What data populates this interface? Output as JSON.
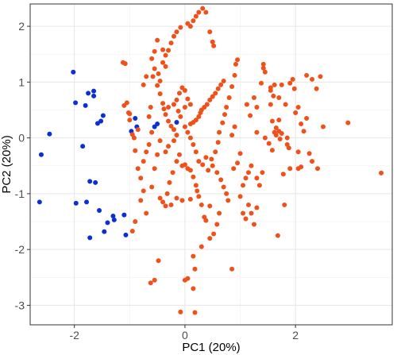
{
  "chart_data": {
    "type": "scatter",
    "title": "",
    "xlabel": "PC1 (20%)",
    "ylabel": "PC2 (20%)",
    "xlim": [
      -2.8,
      3.75
    ],
    "ylim": [
      -3.35,
      2.4
    ],
    "x_ticks": [
      -2,
      0,
      2
    ],
    "y_ticks": [
      -3,
      -2,
      -1,
      0,
      1,
      2
    ],
    "x_tick_labels": [
      "-2",
      "0",
      "2"
    ],
    "y_tick_labels": [
      "-3",
      "-2",
      "-1",
      "0",
      "1",
      "2"
    ],
    "grid": true,
    "legend": "none",
    "series": [
      {
        "color": "#0b2fd4",
        "points": [
          [
            -2.63,
            -1.15
          ],
          [
            -2.6,
            -0.3
          ],
          [
            -2.45,
            0.07
          ],
          [
            -2.02,
            1.18
          ],
          [
            -1.98,
            0.63
          ],
          [
            -1.97,
            -1.17
          ],
          [
            -1.85,
            -0.15
          ],
          [
            -1.8,
            0.58
          ],
          [
            -1.78,
            -1.15
          ],
          [
            -1.75,
            0.8
          ],
          [
            -1.72,
            -0.78
          ],
          [
            -1.65,
            0.84
          ],
          [
            -1.65,
            0.75
          ],
          [
            -1.62,
            -0.8
          ],
          [
            -1.58,
            0.26
          ],
          [
            -1.55,
            -1.3
          ],
          [
            -1.52,
            0.3
          ],
          [
            -1.46,
            -1.68
          ],
          [
            -1.48,
            0.4
          ],
          [
            -1.4,
            -1.52
          ],
          [
            -1.3,
            -1.4
          ],
          [
            -1.28,
            -1.47
          ],
          [
            -1.72,
            -1.79
          ],
          [
            -1.1,
            -1.38
          ],
          [
            -1.07,
            -1.74
          ],
          [
            -0.97,
            0.12
          ],
          [
            -0.9,
            0.35
          ],
          [
            -0.87,
            0.2
          ],
          [
            -0.5,
            0.25
          ],
          [
            -0.55,
            0.2
          ],
          [
            -0.15,
            0.28
          ]
        ]
      },
      {
        "color": "#f0511a",
        "points": [
          [
            -1.12,
            1.35
          ],
          [
            -1.08,
            1.33
          ],
          [
            -1.05,
            0.63
          ],
          [
            -1.1,
            0.58
          ],
          [
            -1.02,
            0.45
          ],
          [
            -1.0,
            0.43
          ],
          [
            -1.0,
            0.32
          ],
          [
            -0.95,
            0.06
          ],
          [
            -0.92,
            0.0
          ],
          [
            -0.9,
            -0.23
          ],
          [
            -0.85,
            -0.55
          ],
          [
            -0.8,
            -0.72
          ],
          [
            -0.75,
            -0.95
          ],
          [
            -0.8,
            -1.12
          ],
          [
            -0.7,
            -1.35
          ],
          [
            -0.9,
            -1.5
          ],
          [
            -0.95,
            -1.67
          ],
          [
            -0.65,
            0.38
          ],
          [
            -0.62,
            0.55
          ],
          [
            -0.58,
            1.1
          ],
          [
            -0.55,
            1.24
          ],
          [
            -0.5,
            0.94
          ],
          [
            -0.45,
            0.79
          ],
          [
            -0.4,
            0.62
          ],
          [
            -0.38,
            0.52
          ],
          [
            -0.35,
            0.42
          ],
          [
            -0.3,
            0.3
          ],
          [
            -0.25,
            0.21
          ],
          [
            -0.2,
            0.15
          ],
          [
            -0.15,
            0.05
          ],
          [
            -0.45,
            -0.05
          ],
          [
            -0.5,
            -0.3
          ],
          [
            -0.55,
            -0.55
          ],
          [
            -0.6,
            -0.88
          ],
          [
            -0.45,
            -1.08
          ],
          [
            -0.4,
            -1.15
          ],
          [
            -0.35,
            -1.22
          ],
          [
            -0.32,
            -1.0
          ],
          [
            -0.28,
            -0.8
          ],
          [
            -0.22,
            -0.62
          ],
          [
            -0.15,
            -0.42
          ],
          [
            -0.1,
            -0.3
          ],
          [
            -0.05,
            -0.5
          ],
          [
            0.0,
            -0.48
          ],
          [
            0.05,
            -0.55
          ],
          [
            0.1,
            -0.58
          ],
          [
            0.15,
            -0.7
          ],
          [
            0.2,
            -0.85
          ],
          [
            0.22,
            -0.95
          ],
          [
            0.3,
            -1.2
          ],
          [
            0.25,
            -1.05
          ],
          [
            -0.05,
            -1.12
          ],
          [
            -0.15,
            -1.08
          ],
          [
            -0.25,
            -1.2
          ],
          [
            0.1,
            -1.1
          ],
          [
            0.35,
            -1.42
          ],
          [
            0.38,
            -1.48
          ],
          [
            0.45,
            -1.22
          ],
          [
            0.42,
            -0.58
          ],
          [
            0.48,
            -0.38
          ],
          [
            0.55,
            -0.25
          ],
          [
            0.6,
            -0.08
          ],
          [
            0.62,
            0.1
          ],
          [
            0.68,
            0.27
          ],
          [
            0.72,
            0.42
          ],
          [
            0.75,
            0.55
          ],
          [
            0.8,
            0.72
          ],
          [
            0.85,
            0.92
          ],
          [
            0.9,
            1.12
          ],
          [
            0.92,
            1.32
          ],
          [
            0.95,
            1.4
          ],
          [
            0.7,
            1.02
          ],
          [
            0.65,
            0.95
          ],
          [
            0.6,
            0.88
          ],
          [
            0.55,
            0.8
          ],
          [
            0.5,
            0.74
          ],
          [
            0.45,
            0.68
          ],
          [
            0.4,
            0.6
          ],
          [
            0.35,
            0.55
          ],
          [
            0.3,
            0.5
          ],
          [
            0.28,
            0.45
          ],
          [
            0.25,
            0.38
          ],
          [
            0.2,
            0.32
          ],
          [
            0.15,
            0.28
          ],
          [
            0.1,
            0.25
          ],
          [
            0.05,
            0.7
          ],
          [
            0.0,
            0.85
          ],
          [
            -0.05,
            0.9
          ],
          [
            -0.1,
            0.8
          ],
          [
            -0.15,
            0.68
          ],
          [
            -0.2,
            0.6
          ],
          [
            -0.3,
            0.55
          ],
          [
            -0.35,
            1.48
          ],
          [
            -0.3,
            1.57
          ],
          [
            -0.25,
            1.7
          ],
          [
            -0.2,
            1.82
          ],
          [
            -0.15,
            1.9
          ],
          [
            -0.08,
            1.98
          ],
          [
            0.05,
            2.05
          ],
          [
            0.1,
            2.0
          ],
          [
            0.15,
            2.1
          ],
          [
            0.2,
            2.18
          ],
          [
            0.25,
            2.25
          ],
          [
            0.32,
            2.32
          ],
          [
            0.38,
            2.25
          ],
          [
            0.45,
            1.9
          ],
          [
            0.5,
            1.72
          ],
          [
            0.52,
            1.65
          ],
          [
            -0.4,
            1.58
          ],
          [
            -0.5,
            1.75
          ],
          [
            -0.6,
            1.42
          ],
          [
            -0.55,
            1.55
          ],
          [
            -0.7,
            1.1
          ],
          [
            -0.75,
            0.95
          ],
          [
            -0.4,
            1.35
          ],
          [
            -0.48,
            1.15
          ],
          [
            -0.45,
            1.02
          ],
          [
            -0.35,
            1.28
          ],
          [
            -0.12,
            0.48
          ],
          [
            -0.08,
            0.38
          ],
          [
            0.0,
            0.2
          ],
          [
            0.05,
            0.1
          ],
          [
            0.1,
            0.0
          ],
          [
            0.15,
            -0.12
          ],
          [
            0.2,
            -0.25
          ],
          [
            0.25,
            -0.42
          ],
          [
            0.32,
            -0.48
          ],
          [
            0.38,
            -0.35
          ],
          [
            0.5,
            -0.5
          ],
          [
            0.58,
            -0.62
          ],
          [
            0.65,
            -0.75
          ],
          [
            0.7,
            -0.88
          ],
          [
            0.75,
            -1.0
          ],
          [
            0.78,
            -1.12
          ],
          [
            0.62,
            -1.35
          ],
          [
            0.58,
            -1.55
          ],
          [
            0.52,
            -1.72
          ],
          [
            0.45,
            -1.8
          ],
          [
            0.3,
            -1.95
          ],
          [
            0.15,
            -2.12
          ],
          [
            0.18,
            -2.35
          ],
          [
            0.05,
            -2.52
          ],
          [
            0.15,
            -2.7
          ],
          [
            0.18,
            -3.13
          ],
          [
            -0.08,
            -3.12
          ],
          [
            -0.48,
            -2.2
          ],
          [
            -0.55,
            -2.55
          ],
          [
            -0.62,
            -2.6
          ],
          [
            0.0,
            -2.55
          ],
          [
            0.85,
            -2.35
          ],
          [
            1.0,
            -1.05
          ],
          [
            1.05,
            -0.85
          ],
          [
            1.1,
            -0.72
          ],
          [
            1.15,
            -0.62
          ],
          [
            1.2,
            -0.5
          ],
          [
            1.05,
            -1.35
          ],
          [
            1.1,
            -1.45
          ],
          [
            1.15,
            -1.2
          ],
          [
            1.2,
            -1.35
          ],
          [
            1.25,
            -1.55
          ],
          [
            1.3,
            -1.25
          ],
          [
            1.35,
            -0.85
          ],
          [
            1.3,
            -0.72
          ],
          [
            1.4,
            -0.62
          ],
          [
            1.12,
            0.6
          ],
          [
            1.18,
            0.4
          ],
          [
            1.25,
            0.72
          ],
          [
            1.3,
            0.55
          ],
          [
            1.38,
            0.98
          ],
          [
            1.42,
            1.25
          ],
          [
            1.45,
            1.18
          ],
          [
            1.55,
            0.85
          ],
          [
            1.6,
            0.75
          ],
          [
            1.58,
            0.3
          ],
          [
            1.65,
            0.18
          ],
          [
            1.7,
            0.12
          ],
          [
            1.75,
            0.08
          ],
          [
            1.65,
            0.05
          ],
          [
            1.72,
            -0.02
          ],
          [
            1.8,
            -1.2
          ],
          [
            1.68,
            -1.75
          ],
          [
            1.85,
            -0.12
          ],
          [
            1.88,
            -0.18
          ],
          [
            1.62,
            0.1
          ],
          [
            1.7,
            0.32
          ],
          [
            1.55,
            0.6
          ],
          [
            1.95,
            1.05
          ],
          [
            1.98,
            0.88
          ],
          [
            2.05,
            0.55
          ],
          [
            2.1,
            0.25
          ],
          [
            2.15,
            0.12
          ],
          [
            2.25,
            -0.28
          ],
          [
            2.3,
            -0.42
          ],
          [
            2.1,
            -0.52
          ],
          [
            2.05,
            -0.55
          ],
          [
            2.38,
            0.88
          ],
          [
            2.3,
            1.05
          ],
          [
            2.45,
            1.1
          ],
          [
            2.2,
            1.12
          ],
          [
            1.9,
            0.98
          ],
          [
            1.75,
            0.95
          ],
          [
            1.62,
            0.95
          ],
          [
            1.55,
            0.9
          ],
          [
            1.7,
            0.72
          ],
          [
            1.82,
            0.6
          ],
          [
            2.0,
            0.45
          ],
          [
            2.2,
            0.35
          ],
          [
            2.5,
            0.2
          ],
          [
            2.95,
            0.27
          ],
          [
            3.55,
            -0.63
          ],
          [
            2.4,
            -0.55
          ],
          [
            2.05,
            -0.25
          ],
          [
            1.9,
            -0.55
          ],
          [
            1.78,
            -0.65
          ],
          [
            1.85,
            0.0
          ],
          [
            1.42,
            1.32
          ],
          [
            1.3,
            0.1
          ],
          [
            1.45,
            0.0
          ],
          [
            1.52,
            -0.1
          ],
          [
            1.58,
            -0.22
          ],
          [
            1.0,
            -0.28
          ],
          [
            0.95,
            -0.45
          ],
          [
            0.88,
            -0.55
          ],
          [
            0.85,
            0.05
          ],
          [
            0.9,
            0.2
          ],
          [
            -0.2,
            -0.05
          ],
          [
            -0.3,
            -0.15
          ],
          [
            -0.35,
            -0.25
          ],
          [
            -0.65,
            -0.12
          ],
          [
            -0.7,
            -0.25
          ],
          [
            -0.75,
            -0.42
          ],
          [
            -0.85,
            0.15
          ],
          [
            -0.6,
            0.1
          ],
          [
            0.0,
            0.55
          ],
          [
            0.1,
            0.6
          ]
        ]
      }
    ]
  }
}
